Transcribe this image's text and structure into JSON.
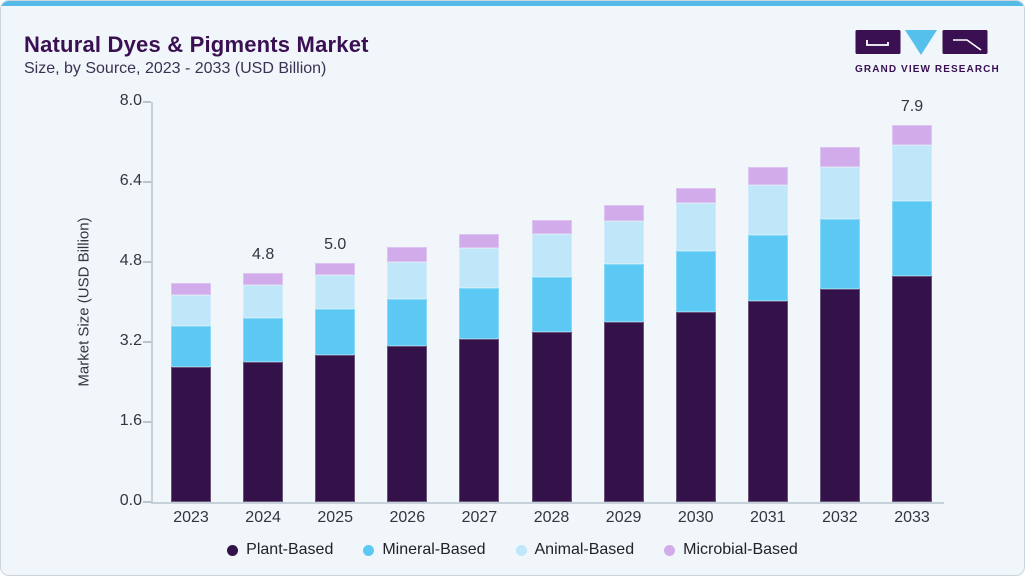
{
  "card": {
    "background": "#f0f6fa",
    "accent_color": "#55bae6",
    "border_color": "#cbd5dc"
  },
  "header": {
    "title": "Natural Dyes & Pigments Market",
    "subtitle": "Size, by Source, 2023 - 2033 (USD Billion)",
    "title_color": "#3a1053"
  },
  "logo": {
    "text": "GRAND VIEW RESEARCH",
    "purple": "#3a1053",
    "cyan": "#55c0ec"
  },
  "chart_data": {
    "type": "bar",
    "stacked": true,
    "title": "Natural Dyes & Pigments Market Size, by Source, 2023 - 2033 (USD Billion)",
    "xlabel": "",
    "ylabel": "Market Size (USD Billion)",
    "ylim": [
      0,
      8.0
    ],
    "ytick_interval": 1.6,
    "yticks": [
      "8.0",
      "6.4",
      "4.8",
      "3.2",
      "1.6",
      "0.0"
    ],
    "grid": false,
    "legend_position": "bottom",
    "categories": [
      "2023",
      "2024",
      "2025",
      "2026",
      "2027",
      "2028",
      "2029",
      "2030",
      "2031",
      "2032",
      "2033"
    ],
    "series": [
      {
        "name": "Plant-Based",
        "color": "#331149",
        "values": [
          2.83,
          2.94,
          3.08,
          3.27,
          3.42,
          3.57,
          3.77,
          3.98,
          4.21,
          4.47,
          4.74
        ]
      },
      {
        "name": "Mineral-Based",
        "color": "#5bc9f3",
        "values": [
          0.86,
          0.91,
          0.96,
          0.98,
          1.06,
          1.15,
          1.21,
          1.29,
          1.38,
          1.47,
          1.58
        ]
      },
      {
        "name": "Animal-Based",
        "color": "#bfe7f9",
        "values": [
          0.66,
          0.7,
          0.71,
          0.79,
          0.84,
          0.89,
          0.92,
          0.99,
          1.05,
          1.08,
          1.16
        ]
      },
      {
        "name": "Microbial-Based",
        "color": "#d2abea",
        "values": [
          0.25,
          0.25,
          0.25,
          0.3,
          0.29,
          0.3,
          0.33,
          0.33,
          0.38,
          0.42,
          0.42
        ]
      }
    ],
    "totals": [
      4.6,
      4.8,
      5.0,
      5.34,
      5.61,
      5.91,
      6.23,
      6.59,
      7.02,
      7.44,
      7.9
    ],
    "value_labels": {
      "2024": "4.8",
      "2025": "5.0",
      "2033": "7.9"
    }
  }
}
